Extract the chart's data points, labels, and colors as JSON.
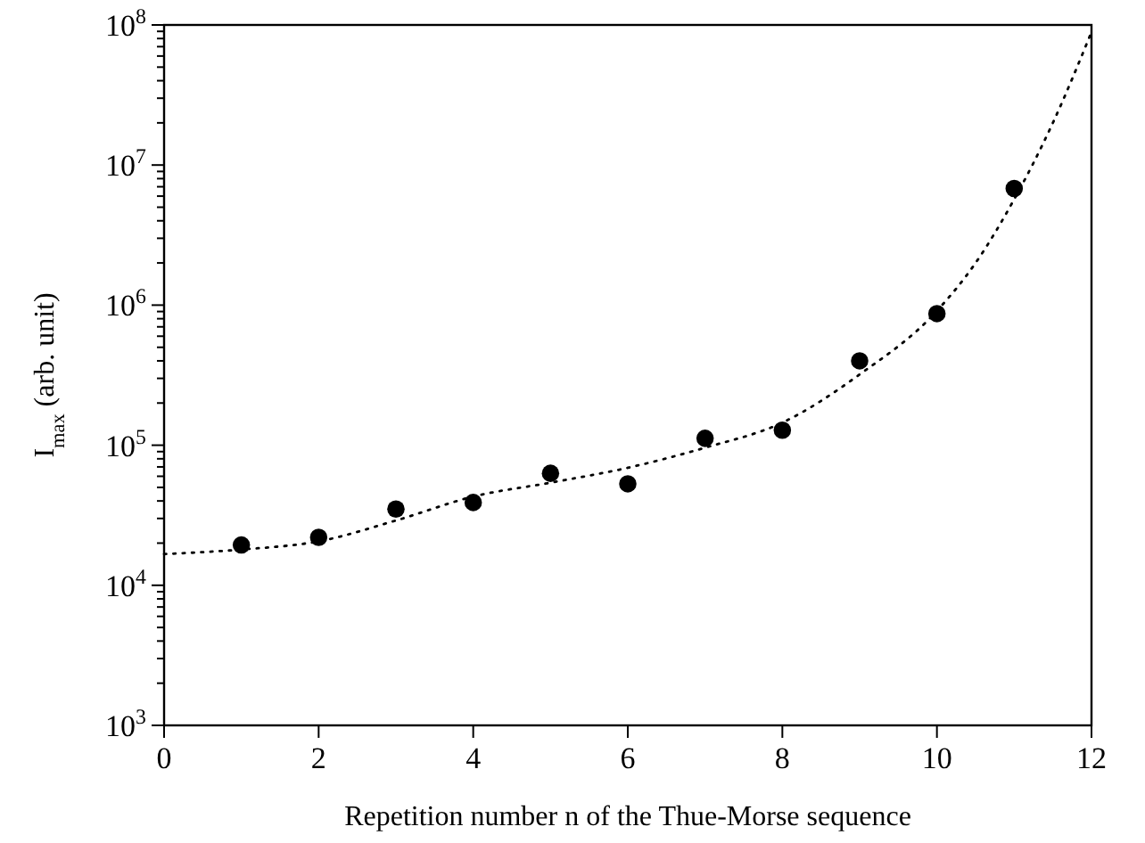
{
  "chart_data": {
    "type": "scatter",
    "xlabel": "Repetition number n of the Thue-Morse sequence",
    "ylabel": "I$_{max}$ (arb. unit)",
    "log": "y",
    "xlim": [
      0,
      12
    ],
    "ylim": [
      1000,
      100000000
    ],
    "xticks": [
      0,
      2,
      4,
      6,
      8,
      10,
      12
    ],
    "yticks": [
      {
        "value": 1000,
        "label": "10$^{3}$"
      },
      {
        "value": 10000,
        "label": "10$^{4}$"
      },
      {
        "value": 100000,
        "label": "10$^{5}$"
      },
      {
        "value": 1000000,
        "label": "10$^{6}$"
      },
      {
        "value": 10000000,
        "label": "10$^{7}$"
      },
      {
        "value": 100000000,
        "label": "10$^{8}$"
      }
    ],
    "grid": false,
    "series": [
      {
        "color": "#000000",
        "marker": "circle",
        "x": [
          1,
          2,
          3,
          4,
          5,
          6,
          7,
          8,
          9,
          10,
          11
        ],
        "values": [
          19400,
          22000,
          35000,
          39000,
          63000,
          53000,
          112000,
          128000,
          400000,
          870000,
          6800000
        ]
      },
      {
        "type": "line",
        "color": "#000000",
        "line_style": "dotted",
        "marker": "none",
        "x": [
          0,
          1,
          2,
          3,
          4,
          5,
          6,
          7,
          8,
          9,
          10,
          10.5,
          11,
          11.5,
          12
        ],
        "values": [
          16700,
          18000,
          20600,
          29000,
          43000,
          54000,
          69000,
          96000,
          145000,
          320000,
          910000,
          2000000,
          5700000,
          20000000,
          89000000
        ]
      }
    ]
  }
}
